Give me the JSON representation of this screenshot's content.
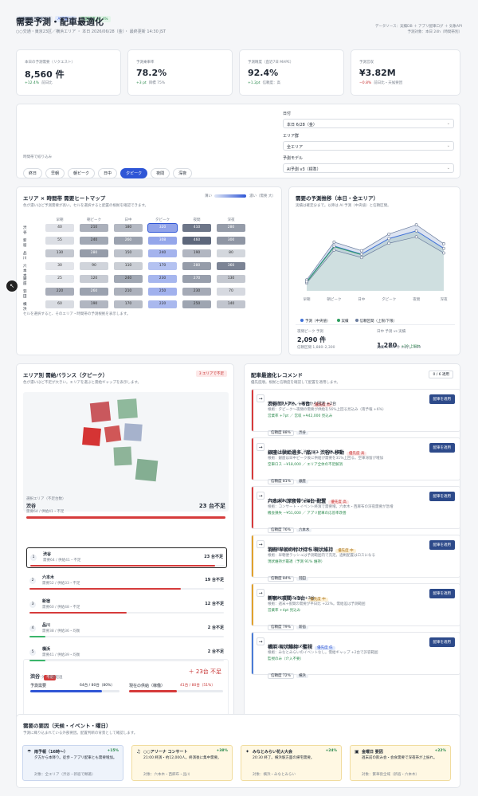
{
  "header": {
    "tags": [
      "配車戦略 / 需要企画",
      "AI予測 v3",
      "予測精度 92.4%"
    ],
    "title": "需要予測・配車最適化",
    "subtitle": "○○交通・東京23区／横浜エリア ・ 本日 2026/06/28（金）・ 最終更新 14:30 JST",
    "meta1": "データソース：実績DB ＋ アプリ配車ログ ＋ 気象API",
    "meta2": "予測対象：本日 24h（時間帯別）"
  },
  "kpis": [
    {
      "label": "本日の予測需要（リクエスト）",
      "value": "8,560 件",
      "delta": "+12.4%",
      "note": "前日比"
    },
    {
      "label": "予測乗車率",
      "value": "78.2%",
      "delta": "+3 pt",
      "note": "目標 75%"
    },
    {
      "label": "予測精度（直近7日 MAPE）",
      "value": "92.4%",
      "delta": "+1.2pt",
      "note": "信頼度：高"
    },
    {
      "label": "予測営収",
      "value": "¥3.82M",
      "delta": "−0.8%",
      "note": "前日比・天候要因"
    }
  ],
  "filters": {
    "time_label": "時間帯で絞り込み",
    "chips": [
      "終日",
      "早朝",
      "朝ピーク",
      "日中",
      "夕ピーク",
      "夜間",
      "深夜"
    ],
    "active": "夕ピーク",
    "date_label": "日付",
    "date_value": "本日 6/28（金）",
    "area_label": "エリア群",
    "area_value": "全エリア",
    "model_label": "予測モデル",
    "model_value": "AI予測 v3（標準）"
  },
  "heatmap": {
    "title": "エリア × 時間帯 需要ヒートマップ",
    "sub": "色が濃いほど予測需要が高い。セルを選択すると配置の根拠を確認できます。",
    "legend_low": "薄い",
    "legend_high": "濃い（需要 大）",
    "cols": [
      "早朝",
      "朝ピーク",
      "日中",
      "夕ピーク",
      "夜間",
      "深夜"
    ],
    "rows": [
      {
        "name": "渋谷",
        "vals": [
          "40",
          "210",
          "180",
          "320",
          "410",
          "280"
        ]
      },
      {
        "name": "新宿",
        "vals": [
          "55",
          "240",
          "260",
          "308",
          "460",
          "300"
        ]
      },
      {
        "name": "品川",
        "vals": [
          "130",
          "280",
          "150",
          "240",
          "190",
          "80"
        ]
      },
      {
        "name": "六本木",
        "vals": [
          "30",
          "90",
          "110",
          "170",
          "280",
          "360"
        ]
      },
      {
        "name": "銀座",
        "vals": [
          "25",
          "120",
          "240",
          "230",
          "270",
          "130"
        ]
      },
      {
        "name": "羽田",
        "vals": [
          "220",
          "260",
          "210",
          "250",
          "230",
          "70"
        ]
      },
      {
        "name": "横浜",
        "vals": [
          "60",
          "190",
          "170",
          "220",
          "250",
          "140"
        ]
      }
    ],
    "foot": "セルを選択すると、そのエリア・時間帯の予測根拠を表示します。"
  },
  "trend": {
    "title": "需要の予測推移（本日・全エリア）",
    "sub": "実績は確定分まで。以降は AI 予測（中央値）と信頼区間。",
    "x": [
      "早朝",
      "朝ピーク",
      "日中",
      "夕ピーク",
      "夜間",
      "深夜"
    ],
    "legend": [
      "予測（中央値）",
      "実績",
      "信頼区間（上限/下限）"
    ],
    "stat1_label": "夜間ピーク 予測",
    "stat1_value": "2,090 件",
    "stat1_note": "信頼区間 1,880–2,300",
    "stat2_label": "日中 予測 vs 実績",
    "stat2_value": "1,280",
    "stat2_delta": "+20 上振れ",
    "stat2_note": "実績 1,260 件 に対し +20"
  },
  "chart_data": {
    "type": "line",
    "categories": [
      "早朝",
      "朝ピーク",
      "日中",
      "夕ピーク",
      "夜間",
      "深夜"
    ],
    "series": [
      {
        "name": "予測（中央値）",
        "values": [
          320,
          1560,
          1280,
          1820,
          2090,
          1480
        ]
      },
      {
        "name": "実績",
        "values": [
          310,
          1540,
          1260,
          null,
          null,
          null
        ]
      },
      {
        "name": "信頼区間（上限/下限）",
        "upper": [
          380,
          1700,
          1400,
          1980,
          2300,
          1640
        ],
        "lower": [
          270,
          1420,
          1160,
          1660,
          1880,
          1320
        ]
      }
    ],
    "ylim": [
      0,
      2500
    ]
  },
  "balance": {
    "title": "エリア別 需給バランス（夕ピーク）",
    "badge": "3 エリアで不足",
    "sub": "色が濃いほど不足が大きい。エリアを選ぶと需給ギャップを表示します。",
    "sel_label": "選択エリア（不足台数）",
    "sel_name": "渋谷",
    "sel_value": "23 台不足",
    "sel_detail": "需要64 / 供給41・不足",
    "ranks": [
      {
        "no": "1",
        "name": "渋谷",
        "detail": "需要64 / 供給41・不足",
        "value": "23 台不足",
        "pct": 0.95,
        "color": "#d63b3b"
      },
      {
        "no": "2",
        "name": "六本木",
        "detail": "需要52 / 供給33・不足",
        "value": "19 台不足",
        "pct": 0.78,
        "color": "#d63b3b"
      },
      {
        "no": "3",
        "name": "新宿",
        "detail": "需要60 / 供給48・不足",
        "value": "12 台不足",
        "pct": 0.5,
        "color": "#d63b3b"
      },
      {
        "no": "4",
        "name": "品川",
        "detail": "需要38 / 供給36・均衡",
        "value": "2 台不足",
        "pct": 0.08,
        "color": "#3bb56a"
      },
      {
        "no": "5",
        "name": "横浜",
        "detail": "需要41 / 供給39・均衡",
        "value": "2 台不足",
        "pct": 0.08,
        "color": "#3bb56a"
      }
    ],
    "detail_name": "渋谷",
    "detail_badge": "不足",
    "detail_value": "＋ 23台 不足",
    "detail_sub": "夕ピーク・需要超過",
    "demand_label": "予測需要",
    "demand_value": "64台 / 80台（80%）",
    "supply_label": "現在の供給（稼働）",
    "supply_value": "41台 / 80台（51%）"
  },
  "recs": {
    "title": "配車最適化レコメンド",
    "count": "0 / 6 適用",
    "sub": "優先度順。根拠と信頼度を確認して配置を適用します。",
    "apply_label": "配車を適用",
    "items": [
      {
        "title": "渋谷エリアへ +6台",
        "prio": "優先度 高",
        "line": "近接待機 +3台 ／ 新宿から回送 +2台",
        "reason": "根拠：夕ピーク〜夜間の需要が供給を56%上回る見込み（雨予報 +6%）",
        "impact": "営業率 +7pt ／ 営収 +¥42,000 見込み",
        "conf": "信頼度 88%",
        "area": "渋谷",
        "color": "#d63b3b"
      },
      {
        "title": "銀座は供給過多、品川・渋谷へ移動",
        "prio": "優先度 高",
        "line": "−6台（品川 +2 ／ 渋谷 +2 ／ 新宿 +2）",
        "reason": "根拠：銀座は日中ピーク後に供給が需要を31%上回る。空車滞留が増加",
        "impact": "空車ロス −¥18,000 ／ エリア全体の不足解消",
        "conf": "信頼度 81%",
        "area": "銀座",
        "color": "#d63b3b"
      },
      {
        "title": "六本木へ深夜帯 +4台 配置",
        "prio": "優先度 高",
        "line": "23時以降の付け待ち強化 +4台",
        "reason": "根拠：コンサート・イベント終演で需要増。六本木・西麻布の深夜需要が急増",
        "impact": "機会損失 −¥51,000 ／ アプリ配車の応答率改善",
        "conf": "信頼度 76%",
        "area": "六本木",
        "color": "#d63b3b"
      },
      {
        "title": "羽田 早朝の付け待ち 現状維持",
        "prio": "優先度 中",
        "line": "現状維持（待機22台で充足）",
        "reason": "根拠：早朝便ラッシュは予測範囲内で充足。過剰配置はロスになる",
        "impact": "現状維持が最適（予測 91% 維持）",
        "conf": "信頼度 84%",
        "area": "羽田",
        "color": "#e0a12e"
      },
      {
        "title": "新宿へ夜間 +3台",
        "prio": "優先度 中",
        "line": "歌舞伎町周辺の流し +3台",
        "reason": "根拠：週末+夜間の需要が平日比 +22%。需給差は予測範囲",
        "impact": "営業率 +4pt 見込み",
        "conf": "信頼度 79%",
        "area": "新宿",
        "color": "#e0a12e"
      },
      {
        "title": "横浜 現状維持・監視",
        "prio": "優先度 低",
        "line": "増減なし（需給は均衡）",
        "reason": "根拠：みなとみらいのイベントなし。需給ギャップ +2台で許容範囲",
        "impact": "監視のみ（介入不要）",
        "conf": "信頼度 72%",
        "area": "横浜",
        "color": "#4a7bd6"
      }
    ]
  },
  "causes": {
    "title": "需要の要因（天候・イベント・曜日）",
    "sub": "予測に織り込まれている外部要因。配置判断の背景として確認します。",
    "items": [
      {
        "title": "雨予報（16時〜）",
        "pct": "+15%",
        "desc": "夕方から本降り。徒歩・アプリ配車とも需要増加。",
        "foot": "対象：全エリア（渋谷・新宿で顕著）",
        "bg": "#eef3fb",
        "border": "#c9d6ee",
        "icon": "☂"
      },
      {
        "title": "○○アリーナ コンサート",
        "pct": "+38%",
        "desc": "21:00 終演・約12,000人。終演後に集中需要。",
        "foot": "対象：六本木・西麻布・品川",
        "bg": "#fff8e3",
        "border": "#f1dc9e",
        "icon": "♫"
      },
      {
        "title": "みなとみらい花火大会",
        "pct": "+24%",
        "desc": "20:30 終了。横浜駅方面の帰宅需要。",
        "foot": "対象：横浜・みなとみらい",
        "bg": "#fff8e3",
        "border": "#f1dc9e",
        "icon": "✦"
      },
      {
        "title": "金曜日 要因",
        "pct": "+22%",
        "desc": "週末前の飲み会・会食需要で深夜帯が上振れ。",
        "foot": "対象：繁華街全域（新宿・六本木）",
        "bg": "#fff8e3",
        "border": "#f1dc9e",
        "icon": "▣"
      }
    ]
  }
}
